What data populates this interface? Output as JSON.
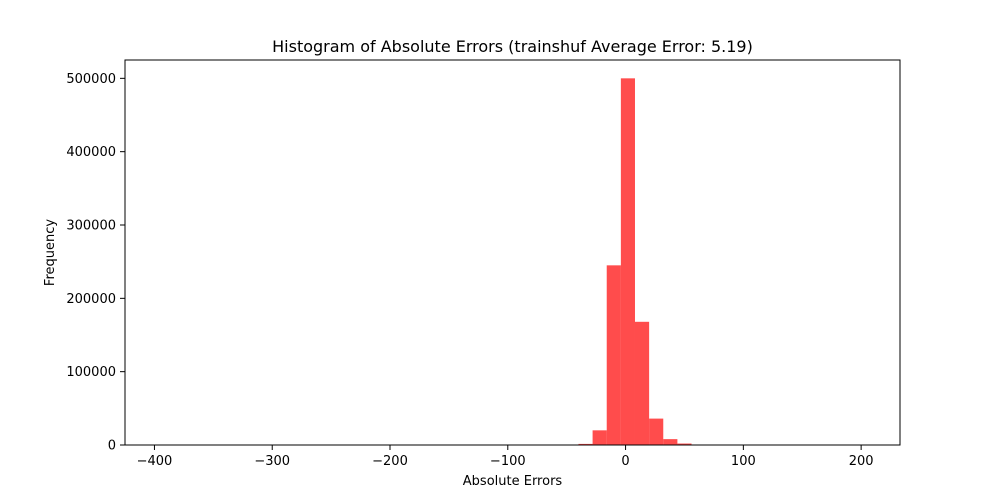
{
  "chart_data": {
    "type": "bar",
    "title": "Histogram of Absolute Errors (trainshuf Average Error: 5.19)",
    "xlabel": "Absolute Errors",
    "ylabel": "Frequency",
    "xlim": [
      -425,
      233
    ],
    "ylim": [
      0,
      525000
    ],
    "xticks": [
      -400,
      -300,
      -200,
      -100,
      0,
      100,
      200
    ],
    "xtick_labels": [
      "−400",
      "−300",
      "−200",
      "−100",
      "0",
      "100",
      "200"
    ],
    "yticks": [
      0,
      100000,
      200000,
      300000,
      400000,
      500000
    ],
    "ytick_labels": [
      "0",
      "100000",
      "200000",
      "300000",
      "400000",
      "500000"
    ],
    "bar_color": "#ff0000",
    "bar_alpha": 0.7,
    "grid": false,
    "bins": [
      {
        "x0": -400,
        "x1": -388,
        "value": 0
      },
      {
        "x0": -388,
        "x1": -376,
        "value": 0
      },
      {
        "x0": -376,
        "x1": -364,
        "value": 0
      },
      {
        "x0": -364,
        "x1": -352,
        "value": 0
      },
      {
        "x0": -352,
        "x1": -340,
        "value": 0
      },
      {
        "x0": -340,
        "x1": -328,
        "value": 0
      },
      {
        "x0": -328,
        "x1": -316,
        "value": 0
      },
      {
        "x0": -316,
        "x1": -304,
        "value": 0
      },
      {
        "x0": -304,
        "x1": -292,
        "value": 0
      },
      {
        "x0": -292,
        "x1": -280,
        "value": 0
      },
      {
        "x0": -280,
        "x1": -268,
        "value": 0
      },
      {
        "x0": -268,
        "x1": -256,
        "value": 0
      },
      {
        "x0": -256,
        "x1": -244,
        "value": 0
      },
      {
        "x0": -244,
        "x1": -232,
        "value": 0
      },
      {
        "x0": -232,
        "x1": -220,
        "value": 0
      },
      {
        "x0": -220,
        "x1": -208,
        "value": 0
      },
      {
        "x0": -208,
        "x1": -196,
        "value": 0
      },
      {
        "x0": -196,
        "x1": -184,
        "value": 0
      },
      {
        "x0": -184,
        "x1": -172,
        "value": 0
      },
      {
        "x0": -172,
        "x1": -160,
        "value": 0
      },
      {
        "x0": -160,
        "x1": -148,
        "value": 0
      },
      {
        "x0": -148,
        "x1": -136,
        "value": 0
      },
      {
        "x0": -136,
        "x1": -124,
        "value": 0
      },
      {
        "x0": -124,
        "x1": -112,
        "value": 0
      },
      {
        "x0": -112,
        "x1": -100,
        "value": 0
      },
      {
        "x0": -100,
        "x1": -88,
        "value": 0
      },
      {
        "x0": -88,
        "x1": -76,
        "value": 0
      },
      {
        "x0": -76,
        "x1": -64,
        "value": 0
      },
      {
        "x0": -64,
        "x1": -52,
        "value": 100
      },
      {
        "x0": -52,
        "x1": -40,
        "value": 300
      },
      {
        "x0": -40,
        "x1": -28,
        "value": 1500
      },
      {
        "x0": -28,
        "x1": -16,
        "value": 20000
      },
      {
        "x0": -16,
        "x1": -4,
        "value": 245000
      },
      {
        "x0": -4,
        "x1": 8,
        "value": 500000
      },
      {
        "x0": 8,
        "x1": 20,
        "value": 168000
      },
      {
        "x0": 20,
        "x1": 32,
        "value": 36000
      },
      {
        "x0": 32,
        "x1": 44,
        "value": 8000
      },
      {
        "x0": 44,
        "x1": 56,
        "value": 2000
      },
      {
        "x0": 56,
        "x1": 68,
        "value": 500
      },
      {
        "x0": 68,
        "x1": 80,
        "value": 200
      },
      {
        "x0": 80,
        "x1": 92,
        "value": 100
      },
      {
        "x0": 92,
        "x1": 104,
        "value": 50
      },
      {
        "x0": 104,
        "x1": 116,
        "value": 0
      },
      {
        "x0": 116,
        "x1": 128,
        "value": 0
      },
      {
        "x0": 128,
        "x1": 140,
        "value": 0
      },
      {
        "x0": 140,
        "x1": 152,
        "value": 0
      },
      {
        "x0": 152,
        "x1": 164,
        "value": 0
      },
      {
        "x0": 164,
        "x1": 176,
        "value": 0
      },
      {
        "x0": 176,
        "x1": 188,
        "value": 0
      },
      {
        "x0": 188,
        "x1": 200,
        "value": 0
      }
    ]
  }
}
